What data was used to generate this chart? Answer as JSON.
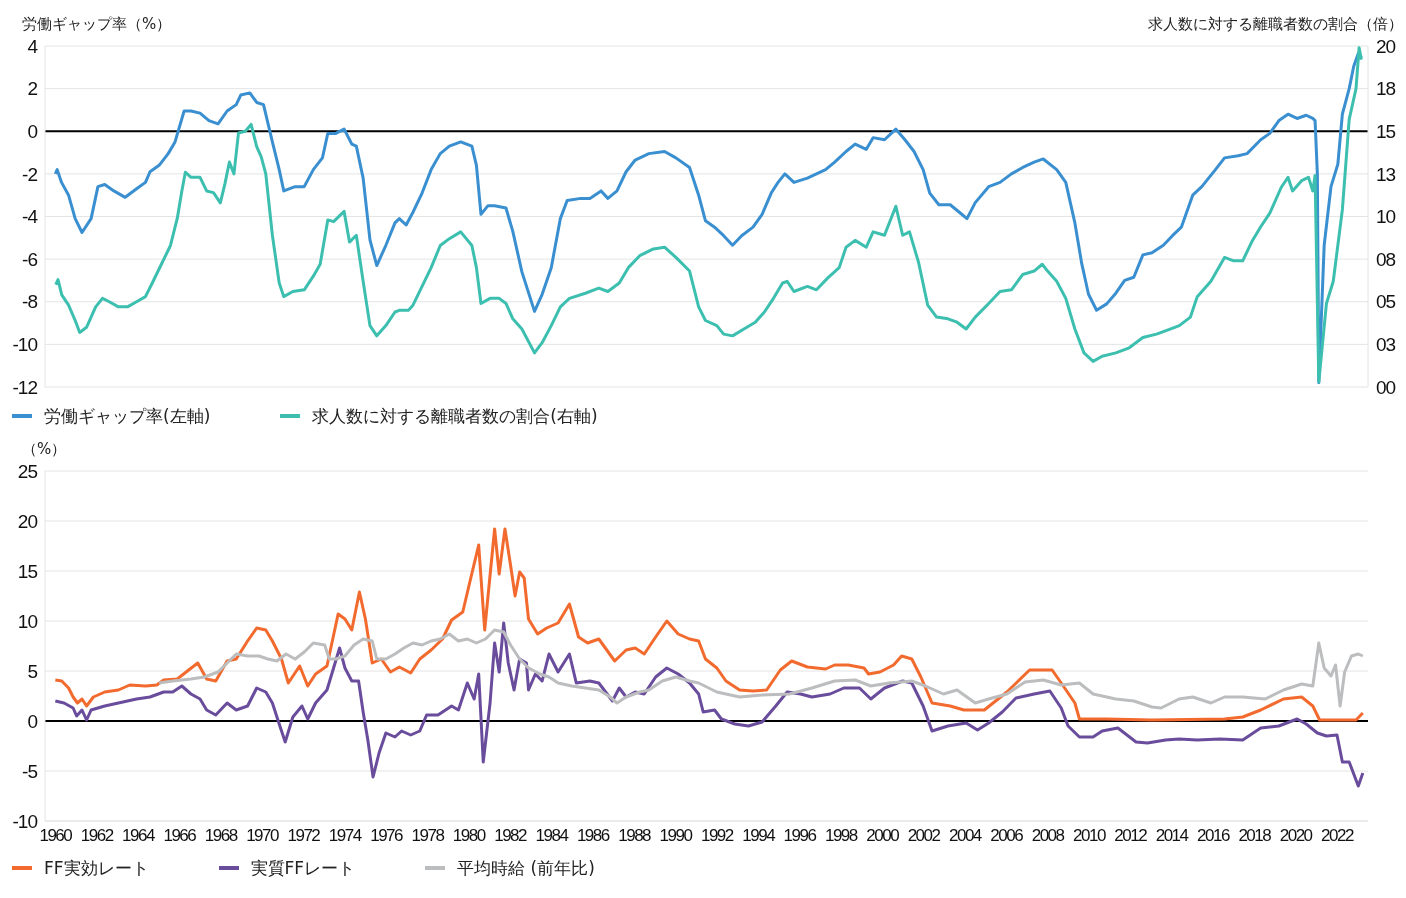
{
  "chart_data": [
    {
      "type": "line",
      "ylabel": "労働ギャップ率（%）",
      "y2label": "求人数に対する離職者数の割合（倍）",
      "xlim": [
        1959.5,
        2023.5
      ],
      "ylim": [
        -12,
        4
      ],
      "yticks": [
        -12,
        -10,
        -8,
        -6,
        -4,
        -2,
        0,
        2,
        4
      ],
      "y2lim": [
        0,
        20
      ],
      "y2ticks": [
        {
          "value": 0,
          "label": "00"
        },
        {
          "value": 2.5,
          "label": "03"
        },
        {
          "value": 5,
          "label": "05"
        },
        {
          "value": 7.5,
          "label": "08"
        },
        10,
        {
          "value": 12.5,
          "label": "13"
        },
        15,
        {
          "value": 17.5,
          "label": "18"
        },
        20
      ],
      "tick_labels": "y",
      "grid": "y",
      "legend": "bottom left",
      "ref_lines": [
        {
          "axis": "y",
          "value": 0,
          "color": "#000000"
        }
      ],
      "series": [
        {
          "name": "労働ギャップ率(左軸)",
          "color": "#3a8fd0",
          "x": [
            1960.0,
            1960.09,
            1960.3,
            1960.64,
            1960.96,
            1961.29,
            1961.73,
            1962.06,
            1962.39,
            1962.83,
            1963.38,
            1963.93,
            1964.36,
            1964.58,
            1965.02,
            1965.46,
            1965.79,
            1966.23,
            1966.56,
            1967.0,
            1967.43,
            1967.87,
            1968.31,
            1968.75,
            1968.97,
            1969.41,
            1969.74,
            1970.07,
            1970.5,
            1970.83,
            1971.05,
            1971.6,
            1972.04,
            1972.48,
            1972.92,
            1973.18,
            1973.57,
            1973.97,
            1974.34,
            1974.56,
            1974.89,
            1975.22,
            1975.55,
            1975.99,
            1976.43,
            1976.64,
            1976.97,
            1977.3,
            1977.74,
            1978.18,
            1978.62,
            1979.06,
            1979.61,
            1980.15,
            1980.37,
            1980.59,
            1980.92,
            1981.25,
            1981.8,
            1982.13,
            1982.57,
            1983.18,
            1983.55,
            1983.99,
            1984.43,
            1984.76,
            1985.42,
            1985.86,
            1986.4,
            1986.73,
            1987.17,
            1987.61,
            1988.05,
            1988.71,
            1989.47,
            1990.02,
            1990.68,
            1991.12,
            1991.45,
            1991.89,
            1992.33,
            1992.76,
            1993.2,
            1993.75,
            1994.19,
            1994.63,
            1994.96,
            1995.29,
            1995.73,
            1996.38,
            1996.82,
            1997.26,
            1997.7,
            1998.25,
            1998.69,
            1999.23,
            1999.56,
            2000.11,
            2000.66,
            2001.1,
            2001.54,
            2001.98,
            2002.3,
            2002.74,
            2003.29,
            2003.73,
            2004.1,
            2004.5,
            2005.15,
            2005.7,
            2006.25,
            2006.8,
            2007.35,
            2007.79,
            2008.44,
            2008.88,
            2009.32,
            2009.65,
            2009.98,
            2010.37,
            2010.86,
            2011.3,
            2011.73,
            2012.17,
            2012.61,
            2013.05,
            2013.6,
            2014.04,
            2014.47,
            2015.02,
            2015.46,
            2016.12,
            2016.56,
            2017.22,
            2017.65,
            2018.31,
            2018.75,
            2019.19,
            2019.63,
            2020.07,
            2020.51,
            2020.83,
            2020.94,
            2021.05,
            2021.12,
            2021.38,
            2021.71,
            2022.04,
            2022.26,
            2022.59,
            2022.81,
            2023.03,
            2023.18
          ],
          "values": [
            -2.0,
            -1.8,
            -2.4,
            -3.0,
            -4.1,
            -4.75,
            -4.1,
            -2.6,
            -2.5,
            -2.8,
            -3.1,
            -2.7,
            -2.4,
            -1.9,
            -1.6,
            -1.05,
            -0.5,
            0.95,
            0.95,
            0.85,
            0.5,
            0.35,
            0.95,
            1.25,
            1.7,
            1.8,
            1.35,
            1.25,
            -0.5,
            -1.8,
            -2.8,
            -2.6,
            -2.6,
            -1.8,
            -1.25,
            -0.1,
            -0.1,
            0.1,
            -0.6,
            -0.7,
            -2.2,
            -5.1,
            -6.3,
            -5.35,
            -4.3,
            -4.1,
            -4.4,
            -3.8,
            -2.9,
            -1.8,
            -1.05,
            -0.7,
            -0.5,
            -0.7,
            -1.6,
            -3.9,
            -3.5,
            -3.5,
            -3.6,
            -4.7,
            -6.6,
            -8.45,
            -7.65,
            -6.4,
            -4.1,
            -3.25,
            -3.15,
            -3.15,
            -2.8,
            -3.15,
            -2.8,
            -1.9,
            -1.35,
            -1.05,
            -0.95,
            -1.25,
            -1.7,
            -3.0,
            -4.2,
            -4.5,
            -4.9,
            -5.35,
            -4.9,
            -4.5,
            -3.9,
            -2.9,
            -2.4,
            -2.0,
            -2.4,
            -2.2,
            -2.0,
            -1.8,
            -1.45,
            -0.95,
            -0.6,
            -0.85,
            -0.3,
            -0.4,
            0.1,
            -0.4,
            -0.95,
            -1.8,
            -2.9,
            -3.45,
            -3.45,
            -3.8,
            -4.1,
            -3.35,
            -2.6,
            -2.4,
            -2.0,
            -1.7,
            -1.45,
            -1.3,
            -1.8,
            -2.4,
            -4.3,
            -6.2,
            -7.65,
            -8.4,
            -8.1,
            -7.6,
            -7.0,
            -6.85,
            -5.8,
            -5.7,
            -5.35,
            -4.9,
            -4.5,
            -3.0,
            -2.6,
            -1.8,
            -1.25,
            -1.15,
            -1.05,
            -0.4,
            -0.1,
            0.5,
            0.8,
            0.6,
            0.75,
            0.6,
            0.5,
            -2.0,
            -11.8,
            -5.35,
            -2.6,
            -1.55,
            0.8,
            2.0,
            3.05,
            3.65,
            3.45
          ]
        },
        {
          "name": "求人数に対する離職者数の割合(右軸)",
          "color": "#3dbfb0",
          "axis": "y2",
          "x": [
            1960.02,
            1960.13,
            1960.31,
            1960.64,
            1960.96,
            1961.18,
            1961.51,
            1961.95,
            1962.28,
            1962.61,
            1963.05,
            1963.49,
            1963.93,
            1964.36,
            1964.69,
            1965.13,
            1965.57,
            1965.9,
            1966.12,
            1966.29,
            1966.56,
            1967.0,
            1967.32,
            1967.65,
            1967.98,
            1968.2,
            1968.42,
            1968.64,
            1968.86,
            1969.19,
            1969.47,
            1969.74,
            1969.96,
            1970.18,
            1970.5,
            1970.83,
            1971.05,
            1971.49,
            1972.04,
            1972.48,
            1972.81,
            1973.18,
            1973.46,
            1973.97,
            1974.23,
            1974.56,
            1974.89,
            1975.22,
            1975.55,
            1975.99,
            1976.43,
            1976.64,
            1977.08,
            1977.3,
            1977.74,
            1978.18,
            1978.62,
            1979.06,
            1979.61,
            1980.15,
            1980.37,
            1980.59,
            1981.03,
            1981.47,
            1981.8,
            1982.13,
            1982.57,
            1983.18,
            1983.55,
            1983.99,
            1984.43,
            1984.87,
            1985.64,
            1986.29,
            1986.73,
            1987.28,
            1987.72,
            1988.27,
            1988.93,
            1989.47,
            1990.02,
            1990.68,
            1991.12,
            1991.45,
            1992.0,
            1992.33,
            1992.76,
            1993.31,
            1993.86,
            1994.3,
            1994.74,
            1995.18,
            1995.4,
            1995.73,
            1996.38,
            1996.82,
            1997.37,
            1997.92,
            1998.25,
            1998.69,
            1999.23,
            1999.56,
            2000.11,
            2000.66,
            2000.99,
            2001.32,
            2001.76,
            2002.2,
            2002.63,
            2003.18,
            2003.62,
            2004.06,
            2004.5,
            2005.15,
            2005.7,
            2006.25,
            2006.8,
            2007.35,
            2007.74,
            2008.0,
            2008.44,
            2008.88,
            2009.32,
            2009.76,
            2010.2,
            2010.64,
            2011.3,
            2011.95,
            2012.61,
            2013.27,
            2013.93,
            2014.37,
            2014.91,
            2015.24,
            2015.9,
            2016.56,
            2017.0,
            2017.44,
            2017.87,
            2018.31,
            2018.75,
            2019.3,
            2019.63,
            2019.85,
            2020.29,
            2020.62,
            2020.83,
            2020.94,
            2021.12,
            2021.49,
            2021.82,
            2022.26,
            2022.59,
            2022.92,
            2023.07,
            2023.18
          ],
          "values": [
            6.0,
            6.3,
            5.4,
            4.8,
            3.9,
            3.2,
            3.5,
            4.7,
            5.2,
            5.0,
            4.7,
            4.7,
            5.0,
            5.3,
            6.1,
            7.2,
            8.3,
            9.9,
            11.5,
            12.6,
            12.3,
            12.3,
            11.5,
            11.4,
            10.8,
            11.9,
            13.2,
            12.5,
            14.9,
            15.0,
            15.4,
            14.1,
            13.5,
            12.5,
            8.9,
            6.1,
            5.3,
            5.6,
            5.7,
            6.5,
            7.2,
            9.8,
            9.7,
            10.3,
            8.5,
            8.9,
            6.2,
            3.6,
            3.0,
            3.6,
            4.4,
            4.5,
            4.5,
            4.8,
            5.9,
            7.0,
            8.3,
            8.7,
            9.1,
            8.3,
            7.0,
            4.9,
            5.2,
            5.2,
            4.9,
            4.0,
            3.4,
            2.0,
            2.6,
            3.6,
            4.7,
            5.2,
            5.5,
            5.8,
            5.6,
            6.1,
            7.0,
            7.7,
            8.1,
            8.2,
            7.6,
            6.8,
            4.7,
            3.9,
            3.6,
            3.1,
            3.0,
            3.4,
            3.8,
            4.4,
            5.2,
            6.1,
            6.2,
            5.6,
            5.9,
            5.7,
            6.4,
            7.0,
            8.2,
            8.6,
            8.2,
            9.1,
            8.9,
            10.6,
            8.9,
            9.1,
            7.3,
            4.8,
            4.1,
            4.0,
            3.8,
            3.4,
            4.1,
            4.9,
            5.6,
            5.7,
            6.6,
            6.8,
            7.2,
            6.8,
            6.2,
            5.2,
            3.4,
            2.0,
            1.5,
            1.8,
            2.0,
            2.3,
            2.9,
            3.1,
            3.4,
            3.6,
            4.1,
            5.3,
            6.2,
            7.6,
            7.4,
            7.4,
            8.5,
            9.4,
            10.2,
            11.7,
            12.3,
            11.5,
            12.1,
            12.3,
            11.5,
            12.4,
            0.3,
            4.9,
            6.2,
            10.4,
            15.7,
            17.5,
            19.9,
            19.2
          ]
        }
      ]
    },
    {
      "type": "line",
      "ylabel": "（%）",
      "xlim": [
        1959.5,
        2023.5
      ],
      "xticks": [
        1960,
        1962,
        1964,
        1966,
        1968,
        1970,
        1972,
        1974,
        1976,
        1978,
        1980,
        1982,
        1984,
        1986,
        1988,
        1990,
        1992,
        1994,
        1996,
        1998,
        2000,
        2002,
        2004,
        2006,
        2008,
        2010,
        2012,
        2014,
        2016,
        2018,
        2020,
        2022
      ],
      "ylim": [
        -10,
        25
      ],
      "yticks": [
        -10,
        -5,
        0,
        5,
        10,
        15,
        20,
        25
      ],
      "grid": "y",
      "legend": "bottom left",
      "ref_lines": [
        {
          "axis": "y",
          "value": 0,
          "color": "#000000"
        }
      ],
      "series": [
        {
          "name": "FF実効レート",
          "color": "#f26a2e",
          "x": [
            1960.0,
            1960.31,
            1960.64,
            1960.86,
            1961.07,
            1961.29,
            1961.51,
            1961.84,
            1962.39,
            1963.05,
            1963.6,
            1964.36,
            1964.91,
            1965.24,
            1965.9,
            1966.45,
            1966.89,
            1967.32,
            1967.76,
            1968.31,
            1968.75,
            1969.3,
            1969.74,
            1970.18,
            1970.5,
            1970.94,
            1971.27,
            1971.82,
            1972.21,
            1972.59,
            1973.14,
            1973.68,
            1974.01,
            1974.34,
            1974.71,
            1975.0,
            1975.33,
            1975.77,
            1976.21,
            1976.64,
            1977.19,
            1977.63,
            1978.18,
            1978.73,
            1979.17,
            1979.71,
            1980.04,
            1980.48,
            1980.77,
            1981.25,
            1981.47,
            1981.75,
            1982.02,
            1982.24,
            1982.46,
            1982.68,
            1982.89,
            1983.33,
            1983.77,
            1984.32,
            1984.87,
            1985.31,
            1985.75,
            1986.29,
            1987.06,
            1987.61,
            1988.05,
            1988.49,
            1989.04,
            1989.58,
            1990.13,
            1990.68,
            1991.12,
            1991.45,
            1992.0,
            1992.44,
            1993.1,
            1993.75,
            1994.41,
            1995.07,
            1995.62,
            1996.38,
            1997.26,
            1997.7,
            1998.36,
            1999.12,
            1999.34,
            1999.89,
            2000.55,
            2000.94,
            2001.43,
            2001.87,
            2002.41,
            2003.29,
            2003.95,
            2004.94,
            2006.03,
            2007.13,
            2008.22,
            2008.66,
            2009.32,
            2009.54,
            2010.86,
            2013.05,
            2016.56,
            2017.44,
            2018.31,
            2019.41,
            2020.29,
            2020.83,
            2021.16,
            2021.82,
            2022.92,
            2023.25
          ],
          "values": [
            4.1,
            4.0,
            3.3,
            2.4,
            1.8,
            2.2,
            1.5,
            2.4,
            2.9,
            3.1,
            3.6,
            3.5,
            3.6,
            4.1,
            4.2,
            5.1,
            5.8,
            4.2,
            4.0,
            6.0,
            6.2,
            8.0,
            9.3,
            9.1,
            8.0,
            6.2,
            3.8,
            5.5,
            3.5,
            4.7,
            5.5,
            10.7,
            10.2,
            9.1,
            12.9,
            10.2,
            5.8,
            6.2,
            4.9,
            5.4,
            4.8,
            6.2,
            7.1,
            8.2,
            10.1,
            10.9,
            13.8,
            17.6,
            9.1,
            19.2,
            14.7,
            19.2,
            15.6,
            12.5,
            14.9,
            14.3,
            10.2,
            8.7,
            9.3,
            9.8,
            11.7,
            8.4,
            7.8,
            8.2,
            6.0,
            7.1,
            7.3,
            6.7,
            8.4,
            10.0,
            8.7,
            8.2,
            8.0,
            6.2,
            5.3,
            4.0,
            3.1,
            3.0,
            3.1,
            5.1,
            6.0,
            5.4,
            5.2,
            5.6,
            5.6,
            5.3,
            4.7,
            4.9,
            5.6,
            6.5,
            6.2,
            4.4,
            1.8,
            1.5,
            1.1,
            1.1,
            2.9,
            5.1,
            5.1,
            3.8,
            1.8,
            0.2,
            0.2,
            0.1,
            0.2,
            0.4,
            1.1,
            2.2,
            2.4,
            1.5,
            0.1,
            0.1,
            0.1,
            0.8
          ]
        },
        {
          "name": "実質FFレート",
          "color": "#6a4c9c",
          "x": [
            1960.0,
            1960.42,
            1960.86,
            1961.03,
            1961.29,
            1961.51,
            1961.73,
            1962.39,
            1963.05,
            1963.93,
            1964.58,
            1965.24,
            1965.68,
            1966.12,
            1966.56,
            1967.0,
            1967.32,
            1967.76,
            1968.31,
            1968.75,
            1969.3,
            1969.74,
            1970.18,
            1970.5,
            1970.83,
            1971.12,
            1971.49,
            1971.93,
            1972.21,
            1972.59,
            1973.14,
            1973.46,
            1973.75,
            1974.01,
            1974.34,
            1974.67,
            1974.89,
            1975.11,
            1975.37,
            1975.66,
            1975.99,
            1976.43,
            1976.75,
            1977.19,
            1977.63,
            1977.96,
            1978.51,
            1979.17,
            1979.5,
            1979.93,
            1980.26,
            1980.48,
            1980.7,
            1981.03,
            1981.25,
            1981.47,
            1981.69,
            1981.91,
            1982.19,
            1982.46,
            1982.79,
            1982.89,
            1983.22,
            1983.55,
            1983.88,
            1984.32,
            1984.87,
            1985.2,
            1985.86,
            1986.29,
            1986.95,
            1987.28,
            1987.61,
            1988.05,
            1988.49,
            1989.04,
            1989.58,
            1990.13,
            1990.68,
            1991.12,
            1991.34,
            1991.89,
            1992.22,
            1992.87,
            1993.53,
            1994.19,
            1994.85,
            1995.4,
            1996.05,
            1996.6,
            1997.48,
            1998.14,
            1998.9,
            1999.45,
            2000.11,
            2000.99,
            2001.43,
            2001.98,
            2002.41,
            2003.18,
            2004.06,
            2004.61,
            2005.15,
            2005.81,
            2006.47,
            2007.35,
            2008.11,
            2008.66,
            2008.99,
            2009.54,
            2010.2,
            2010.64,
            2011.4,
            2012.28,
            2012.83,
            2013.71,
            2014.36,
            2015.24,
            2016.34,
            2017.44,
            2018.31,
            2019.19,
            2020.07,
            2020.51,
            2021.05,
            2021.49,
            2022.0,
            2022.26,
            2022.59,
            2023.03,
            2023.25
          ],
          "values": [
            2.0,
            1.8,
            1.3,
            0.5,
            1.1,
            0.1,
            1.1,
            1.5,
            1.8,
            2.2,
            2.4,
            2.9,
            2.9,
            3.5,
            2.7,
            2.2,
            1.1,
            0.6,
            1.8,
            1.1,
            1.5,
            3.3,
            2.9,
            1.8,
            -0.3,
            -2.1,
            0.4,
            1.5,
            0.2,
            1.8,
            3.1,
            5.3,
            7.3,
            5.3,
            4.0,
            4.0,
            0.9,
            -1.8,
            -5.6,
            -3.2,
            -1.2,
            -1.6,
            -1.0,
            -1.4,
            -1.0,
            0.6,
            0.6,
            1.5,
            1.1,
            3.8,
            2.2,
            4.7,
            -4.1,
            1.8,
            7.8,
            4.9,
            9.8,
            5.8,
            3.1,
            6.2,
            5.8,
            3.1,
            4.7,
            4.0,
            6.7,
            4.9,
            6.7,
            3.8,
            4.0,
            3.8,
            2.0,
            3.3,
            2.4,
            2.9,
            2.7,
            4.4,
            5.3,
            4.7,
            3.8,
            2.7,
            0.9,
            1.1,
            0.2,
            -0.3,
            -0.5,
            -0.1,
            1.5,
            2.9,
            2.7,
            2.4,
            2.7,
            3.3,
            3.3,
            2.2,
            3.3,
            4.0,
            3.8,
            1.5,
            -1.0,
            -0.5,
            -0.2,
            -0.9,
            -0.2,
            0.9,
            2.3,
            2.7,
            3.0,
            1.3,
            -0.5,
            -1.6,
            -1.6,
            -1.0,
            -0.7,
            -2.1,
            -2.2,
            -1.9,
            -1.8,
            -1.9,
            -1.8,
            -1.9,
            -0.7,
            -0.5,
            0.2,
            -0.3,
            -1.2,
            -1.5,
            -1.4,
            -4.1,
            -4.1,
            -6.5,
            -5.2
          ]
        },
        {
          "name": "平均時給 (前年比)",
          "color": "#bcbdbf",
          "x": [
            1965.02,
            1965.68,
            1966.56,
            1967.21,
            1967.87,
            1968.31,
            1968.75,
            1969.3,
            1969.85,
            1970.28,
            1970.72,
            1971.16,
            1971.6,
            1972.04,
            1972.48,
            1973.03,
            1973.25,
            1973.57,
            1974.01,
            1974.45,
            1974.89,
            1975.33,
            1975.55,
            1975.99,
            1976.43,
            1976.86,
            1977.3,
            1977.74,
            1978.18,
            1978.62,
            1979.06,
            1979.5,
            1979.93,
            1980.37,
            1980.81,
            1981.25,
            1981.69,
            1982.02,
            1982.46,
            1982.89,
            1983.44,
            1983.88,
            1984.32,
            1984.98,
            1985.64,
            1986.29,
            1986.84,
            1987.17,
            1987.61,
            1988.27,
            1988.71,
            1989.36,
            1990.02,
            1990.68,
            1991.12,
            1992.0,
            1993.1,
            1994.19,
            1995.51,
            1996.6,
            1997.7,
            1998.69,
            1999.45,
            2000.33,
            2001.43,
            2002.09,
            2002.96,
            2003.62,
            2004.5,
            2005.15,
            2006.03,
            2006.91,
            2007.79,
            2008.66,
            2009.54,
            2010.2,
            2011.3,
            2012.17,
            2013.05,
            2013.49,
            2014.36,
            2015.02,
            2015.9,
            2016.56,
            2017.44,
            2018.53,
            2019.41,
            2020.29,
            2020.83,
            2021.12,
            2021.38,
            2021.71,
            2021.93,
            2022.15,
            2022.37,
            2022.7,
            2023.03,
            2023.25
          ],
          "values": [
            3.8,
            4.0,
            4.2,
            4.4,
            4.9,
            5.8,
            6.7,
            6.5,
            6.5,
            6.2,
            6.0,
            6.7,
            6.2,
            6.9,
            7.8,
            7.6,
            6.2,
            6.2,
            6.5,
            7.6,
            8.2,
            8.0,
            6.2,
            6.2,
            6.7,
            7.3,
            7.8,
            7.6,
            8.0,
            8.2,
            8.7,
            8.0,
            8.2,
            7.8,
            8.2,
            9.1,
            8.9,
            7.6,
            6.2,
            5.3,
            4.7,
            4.4,
            3.8,
            3.5,
            3.3,
            3.1,
            2.4,
            1.8,
            2.4,
            2.9,
            3.1,
            4.0,
            4.4,
            4.0,
            3.8,
            2.9,
            2.4,
            2.6,
            2.7,
            3.3,
            4.0,
            4.1,
            3.5,
            3.8,
            4.0,
            3.5,
            2.7,
            3.1,
            1.8,
            2.2,
            2.7,
            3.9,
            4.1,
            3.6,
            3.8,
            2.7,
            2.2,
            2.0,
            1.4,
            1.3,
            2.2,
            2.4,
            1.8,
            2.4,
            2.4,
            2.2,
            3.1,
            3.7,
            3.5,
            7.8,
            5.3,
            4.5,
            5.6,
            1.5,
            4.9,
            6.5,
            6.7,
            6.5
          ]
        }
      ]
    }
  ]
}
